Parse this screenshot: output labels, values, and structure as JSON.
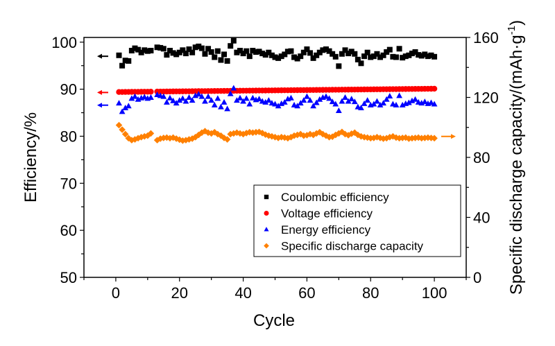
{
  "chart_data": {
    "type": "scatter",
    "title": "",
    "xlabel": "Cycle",
    "ylabel_left": "Efficiency/%",
    "ylabel_right": "Specific discharge capacity/(mAh·g",
    "ylabel_right_sup": "-1",
    "ylabel_right_close": ")",
    "xlim": [
      -10,
      110
    ],
    "ylim_left": [
      50,
      101
    ],
    "ylim_right": [
      0,
      160
    ],
    "x_ticks": [
      0,
      20,
      40,
      60,
      80,
      100
    ],
    "x_tick_labels": [
      "0",
      "20",
      "40",
      "60",
      "80",
      "100"
    ],
    "y_left_ticks": [
      50,
      60,
      70,
      80,
      90,
      100
    ],
    "y_left_tick_labels": [
      "50",
      "60",
      "70",
      "80",
      "90",
      "100"
    ],
    "y_right_ticks": [
      0,
      40,
      80,
      120,
      160
    ],
    "y_right_tick_labels": [
      "0",
      "40",
      "80",
      "120",
      "160"
    ],
    "grid": false,
    "legend_position": "bottom-right",
    "series": [
      {
        "name": "Coulombic efficiency",
        "marker": "square",
        "color": "#000000",
        "axis": "left",
        "arrow": "left",
        "arrow_value": 97,
        "x": [
          1,
          2,
          3,
          4,
          5,
          6,
          7,
          8,
          9,
          10,
          11,
          13,
          14,
          15,
          16,
          17,
          18,
          19,
          20,
          21,
          22,
          23,
          24,
          25,
          26,
          27,
          28,
          29,
          30,
          31,
          32,
          33,
          34,
          35,
          36,
          37,
          38,
          39,
          40,
          41,
          42,
          43,
          44,
          45,
          46,
          47,
          48,
          49,
          50,
          51,
          52,
          53,
          54,
          55,
          56,
          57,
          58,
          59,
          60,
          61,
          62,
          63,
          64,
          65,
          66,
          67,
          68,
          69,
          70,
          71,
          72,
          73,
          74,
          75,
          76,
          77,
          78,
          79,
          80,
          81,
          82,
          83,
          84,
          85,
          86,
          87,
          88,
          89,
          90,
          91,
          92,
          93,
          94,
          95,
          96,
          97,
          98,
          99,
          100
        ],
        "values": [
          97.2,
          95.0,
          96.1,
          96.0,
          98.2,
          98.7,
          98.4,
          97.8,
          98.3,
          98.1,
          98.2,
          98.9,
          98.8,
          98.6,
          97.3,
          98.2,
          97.7,
          97.4,
          97.8,
          98.3,
          97.6,
          98.5,
          97.8,
          98.9,
          99.1,
          98.7,
          97.5,
          98.6,
          97.9,
          96.8,
          98.1,
          96.2,
          97.4,
          96.0,
          99.2,
          100.3,
          97.8,
          98.2,
          97.6,
          98.1,
          97.0,
          98.2,
          97.9,
          98.0,
          97.6,
          97.3,
          97.8,
          97.2,
          96.8,
          96.6,
          97.0,
          97.4,
          98.0,
          98.1,
          96.8,
          96.5,
          97.0,
          97.8,
          98.5,
          97.7,
          96.6,
          97.2,
          97.8,
          98.3,
          98.5,
          98.1,
          97.5,
          96.9,
          94.9,
          97.5,
          98.3,
          97.6,
          98.0,
          97.5,
          96.3,
          95.5,
          97.0,
          97.8,
          96.8,
          97.0,
          97.5,
          96.8,
          97.2,
          97.9,
          98.4,
          96.9,
          96.8,
          98.6,
          96.7,
          97.0,
          97.2,
          97.6,
          97.9,
          97.3,
          97.1,
          97.4,
          97.0,
          97.2,
          96.9
        ]
      },
      {
        "name": "Voltage efficiency",
        "marker": "circle",
        "color": "#ff0000",
        "axis": "left",
        "arrow": "left",
        "arrow_value": 89.3,
        "x_start": 1,
        "x_end": 100,
        "x_gap": 12,
        "values_summary": "approximately 89.4 rising slowly to 90.1 over cycles 1-100",
        "first": 89.4,
        "last": 90.1
      },
      {
        "name": "Energy efficiency",
        "marker": "triangle",
        "color": "#0000ff",
        "axis": "left",
        "arrow": "left",
        "arrow_value": 86.6,
        "x": [
          1,
          2,
          3,
          4,
          5,
          6,
          7,
          8,
          9,
          10,
          11,
          13,
          14,
          15,
          16,
          17,
          18,
          19,
          20,
          21,
          22,
          23,
          24,
          25,
          26,
          27,
          28,
          29,
          30,
          31,
          32,
          33,
          34,
          35,
          36,
          37,
          38,
          39,
          40,
          41,
          42,
          43,
          44,
          45,
          46,
          47,
          48,
          49,
          50,
          51,
          52,
          53,
          54,
          55,
          56,
          57,
          58,
          59,
          60,
          61,
          62,
          63,
          64,
          65,
          66,
          67,
          68,
          69,
          70,
          71,
          72,
          73,
          74,
          75,
          76,
          77,
          78,
          79,
          80,
          81,
          82,
          83,
          84,
          85,
          86,
          87,
          88,
          89,
          90,
          91,
          92,
          93,
          94,
          95,
          96,
          97,
          98,
          99,
          100
        ],
        "values": [
          87.0,
          85.2,
          86.0,
          86.4,
          88.0,
          88.4,
          87.8,
          88.1,
          88.3,
          88.0,
          88.2,
          88.8,
          88.6,
          88.4,
          87.2,
          88.1,
          87.5,
          87.0,
          87.6,
          88.0,
          87.4,
          88.2,
          87.6,
          88.6,
          88.9,
          88.4,
          87.4,
          88.4,
          87.6,
          86.6,
          88.0,
          86.2,
          87.2,
          85.8,
          89.0,
          90.2,
          87.6,
          88.1,
          87.4,
          88.0,
          86.8,
          88.1,
          87.7,
          87.9,
          87.4,
          87.2,
          87.6,
          87.0,
          86.8,
          86.4,
          86.9,
          87.2,
          87.9,
          88.1,
          86.6,
          86.4,
          87.0,
          87.6,
          88.4,
          87.6,
          86.4,
          87.1,
          87.8,
          88.2,
          88.4,
          88.0,
          87.3,
          86.8,
          85.4,
          87.4,
          88.2,
          87.4,
          87.9,
          87.3,
          86.2,
          86.0,
          86.9,
          87.6,
          86.6,
          86.8,
          87.4,
          86.6,
          87.0,
          87.8,
          88.5,
          86.8,
          86.6,
          88.6,
          86.6,
          86.9,
          87.1,
          87.5,
          87.8,
          87.2,
          87.0,
          87.3,
          86.9,
          87.1,
          86.8
        ]
      },
      {
        "name": "Specific discharge capacity",
        "marker": "diamond",
        "color": "#ff8000",
        "axis": "right",
        "arrow": "right",
        "arrow_value": 94,
        "x": [
          1,
          2,
          3,
          4,
          5,
          6,
          7,
          8,
          9,
          10,
          11,
          13,
          14,
          15,
          16,
          17,
          18,
          19,
          20,
          21,
          22,
          23,
          24,
          25,
          26,
          27,
          28,
          29,
          30,
          31,
          32,
          33,
          34,
          35,
          36,
          37,
          38,
          39,
          40,
          41,
          42,
          43,
          44,
          45,
          46,
          47,
          48,
          49,
          50,
          51,
          52,
          53,
          54,
          55,
          56,
          57,
          58,
          59,
          60,
          61,
          62,
          63,
          64,
          65,
          66,
          67,
          68,
          69,
          70,
          71,
          72,
          73,
          74,
          75,
          76,
          77,
          78,
          79,
          80,
          81,
          82,
          83,
          84,
          85,
          86,
          87,
          88,
          89,
          90,
          91,
          92,
          93,
          94,
          95,
          96,
          97,
          98,
          99,
          100
        ],
        "values": [
          101.5,
          98.5,
          95.5,
          92.8,
          91.5,
          92.0,
          92.8,
          93.5,
          94.0,
          94.5,
          96.0,
          91.5,
          92.5,
          93.0,
          93.2,
          92.8,
          93.2,
          92.5,
          91.8,
          91.2,
          91.5,
          92.0,
          92.5,
          93.5,
          95.0,
          96.5,
          97.5,
          96.5,
          96.0,
          96.8,
          95.5,
          94.5,
          93.0,
          92.0,
          95.5,
          96.0,
          96.5,
          96.0,
          95.5,
          96.2,
          96.8,
          96.5,
          96.8,
          97.0,
          96.2,
          95.2,
          94.5,
          94.0,
          93.5,
          93.0,
          93.5,
          93.2,
          92.8,
          93.5,
          94.5,
          95.0,
          95.5,
          94.5,
          94.8,
          95.5,
          95.0,
          96.0,
          96.8,
          95.5,
          94.5,
          93.5,
          93.8,
          95.0,
          96.0,
          97.0,
          95.5,
          94.8,
          95.8,
          96.5,
          95.0,
          94.0,
          93.5,
          93.2,
          92.8,
          93.0,
          93.5,
          93.0,
          92.5,
          92.8,
          93.5,
          94.0,
          93.2,
          92.8,
          93.0,
          93.2,
          92.5,
          92.8,
          93.0,
          93.2,
          92.8,
          93.0,
          93.2,
          93.0,
          92.8
        ]
      }
    ]
  }
}
